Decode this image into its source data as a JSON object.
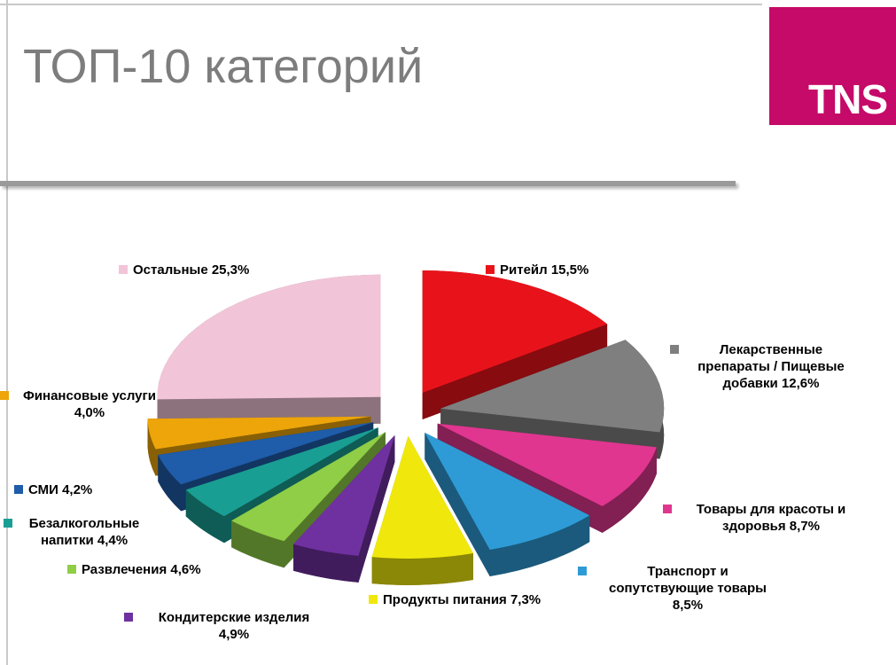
{
  "slide": {
    "title": "ТОП-10 категорий",
    "title_color": "#7D7D7D",
    "divider_color": "#9A9A9A",
    "background": "#FFFFFF",
    "logo": {
      "text": "TNS",
      "bg_color": "#C50A69",
      "text_color": "#FFFFFF"
    }
  },
  "chart_data": {
    "type": "pie",
    "title": "ТОП-10 категорий",
    "unit": "percent",
    "total": 100.0,
    "effect": "3d-exploded",
    "start_angle": -90,
    "direction": "clockwise",
    "legend_position": "callouts-around-pie",
    "slices": [
      {
        "name": "Ритейл",
        "value": 15.5,
        "color": "#E8131A",
        "label": "Ритейл 15,5%"
      },
      {
        "name": "Лекарственные препараты / Пищевые добавки",
        "value": 12.6,
        "color": "#7F7F7F",
        "label": "Лекарственные\nпрепараты / Пищевые\nдобавки 12,6%"
      },
      {
        "name": "Товары для красоты и здоровья",
        "value": 8.7,
        "color": "#E0368F",
        "label": "Товары для красоты и\nздоровья 8,7%"
      },
      {
        "name": "Транспорт и сопутствующие товары",
        "value": 8.5,
        "color": "#2E9BD6",
        "label": "Транспорт и\nсопутствующие товары\n8,5%"
      },
      {
        "name": "Продукты питания",
        "value": 7.3,
        "color": "#F0E80C",
        "label": "Продукты питания 7,3%"
      },
      {
        "name": "Кондитерские изделия",
        "value": 4.9,
        "color": "#7031A0",
        "label": "Кондитерские изделия\n4,9%"
      },
      {
        "name": "Развлечения",
        "value": 4.6,
        "color": "#8FCE46",
        "label": "Развлечения 4,6%"
      },
      {
        "name": "Безалкогольные напитки",
        "value": 4.4,
        "color": "#199E93",
        "label": "Безалкогольные\nнапитки 4,4%"
      },
      {
        "name": "СМИ",
        "value": 4.2,
        "color": "#1F5CA9",
        "label": "СМИ 4,2%"
      },
      {
        "name": "Финансовые услуги",
        "value": 4.0,
        "color": "#EDA50A",
        "label": "Финансовые услуги\n4,0%"
      },
      {
        "name": "Остальные",
        "value": 25.3,
        "color": "#F2C4D8",
        "label": "Остальные 25,3%"
      }
    ]
  }
}
